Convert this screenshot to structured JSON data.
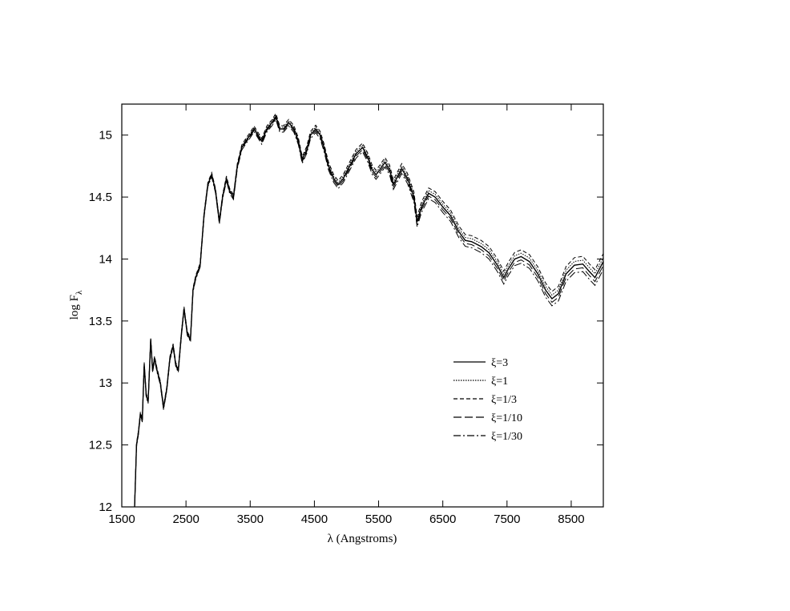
{
  "chart_data": {
    "type": "line",
    "xlabel": "λ (Angstroms)",
    "ylabel_main": "log F",
    "ylabel_sub": "λ",
    "xlim": [
      1500,
      9000
    ],
    "ylim": [
      12,
      15.25
    ],
    "xticks": [
      1500,
      2500,
      3500,
      4500,
      5500,
      6500,
      7500,
      8500
    ],
    "xtick_labels": [
      "1500",
      "2500",
      "3500",
      "4500",
      "5500",
      "6500",
      "7500",
      "8500"
    ],
    "yticks": [
      12,
      12.5,
      13,
      13.5,
      14,
      14.5,
      15
    ],
    "ytick_labels": [
      "12",
      "12.5",
      "13",
      "13.5",
      "14",
      "14.5",
      "15"
    ],
    "grid": false,
    "legend_position": "lower-right",
    "series": [
      {
        "name": "ξ=3",
        "dash": "solid",
        "offset": 0.0
      },
      {
        "name": "ξ=1",
        "dash": "dotted",
        "offset": 0.02
      },
      {
        "name": "ξ=1/3",
        "dash": "dashed",
        "offset": 0.04
      },
      {
        "name": "ξ=1/10",
        "dash": "longdash",
        "offset": -0.02
      },
      {
        "name": "ξ=1/30",
        "dash": "dashdot",
        "offset": -0.04
      }
    ],
    "base_curve": [
      [
        1700,
        12.0
      ],
      [
        1730,
        12.5
      ],
      [
        1760,
        12.6
      ],
      [
        1790,
        12.75
      ],
      [
        1820,
        12.7
      ],
      [
        1850,
        13.15
      ],
      [
        1880,
        12.9
      ],
      [
        1910,
        12.85
      ],
      [
        1950,
        13.35
      ],
      [
        1980,
        13.1
      ],
      [
        2010,
        13.2
      ],
      [
        2050,
        13.1
      ],
      [
        2100,
        13.0
      ],
      [
        2150,
        12.8
      ],
      [
        2200,
        12.95
      ],
      [
        2250,
        13.2
      ],
      [
        2300,
        13.3
      ],
      [
        2340,
        13.15
      ],
      [
        2380,
        13.1
      ],
      [
        2430,
        13.4
      ],
      [
        2470,
        13.6
      ],
      [
        2520,
        13.4
      ],
      [
        2570,
        13.35
      ],
      [
        2610,
        13.75
      ],
      [
        2650,
        13.85
      ],
      [
        2720,
        13.95
      ],
      [
        2780,
        14.35
      ],
      [
        2840,
        14.6
      ],
      [
        2900,
        14.68
      ],
      [
        2960,
        14.55
      ],
      [
        3020,
        14.3
      ],
      [
        3070,
        14.5
      ],
      [
        3130,
        14.65
      ],
      [
        3180,
        14.55
      ],
      [
        3240,
        14.5
      ],
      [
        3300,
        14.75
      ],
      [
        3370,
        14.9
      ],
      [
        3430,
        14.95
      ],
      [
        3500,
        15.0
      ],
      [
        3560,
        15.05
      ],
      [
        3620,
        15.0
      ],
      [
        3680,
        14.95
      ],
      [
        3760,
        15.05
      ],
      [
        3840,
        15.1
      ],
      [
        3900,
        15.15
      ],
      [
        3960,
        15.05
      ],
      [
        4020,
        15.05
      ],
      [
        4100,
        15.1
      ],
      [
        4180,
        15.05
      ],
      [
        4250,
        14.95
      ],
      [
        4310,
        14.8
      ],
      [
        4380,
        14.88
      ],
      [
        4440,
        15.0
      ],
      [
        4520,
        15.05
      ],
      [
        4590,
        15.0
      ],
      [
        4650,
        14.9
      ],
      [
        4720,
        14.75
      ],
      [
        4800,
        14.65
      ],
      [
        4870,
        14.6
      ],
      [
        4950,
        14.65
      ],
      [
        5050,
        14.75
      ],
      [
        5150,
        14.85
      ],
      [
        5250,
        14.9
      ],
      [
        5330,
        14.82
      ],
      [
        5400,
        14.72
      ],
      [
        5460,
        14.68
      ],
      [
        5520,
        14.72
      ],
      [
        5600,
        14.78
      ],
      [
        5670,
        14.72
      ],
      [
        5730,
        14.6
      ],
      [
        5780,
        14.65
      ],
      [
        5860,
        14.73
      ],
      [
        5950,
        14.65
      ],
      [
        6050,
        14.5
      ],
      [
        6100,
        14.3
      ],
      [
        6170,
        14.42
      ],
      [
        6280,
        14.53
      ],
      [
        6380,
        14.5
      ],
      [
        6500,
        14.42
      ],
      [
        6620,
        14.35
      ],
      [
        6750,
        14.22
      ],
      [
        6850,
        14.15
      ],
      [
        6950,
        14.14
      ],
      [
        7100,
        14.1
      ],
      [
        7220,
        14.05
      ],
      [
        7350,
        13.95
      ],
      [
        7450,
        13.85
      ],
      [
        7520,
        13.92
      ],
      [
        7620,
        14.0
      ],
      [
        7720,
        14.02
      ],
      [
        7850,
        13.98
      ],
      [
        7980,
        13.88
      ],
      [
        8100,
        13.75
      ],
      [
        8200,
        13.68
      ],
      [
        8300,
        13.72
      ],
      [
        8420,
        13.88
      ],
      [
        8550,
        13.95
      ],
      [
        8680,
        13.96
      ],
      [
        8780,
        13.9
      ],
      [
        8870,
        13.85
      ],
      [
        8950,
        13.93
      ],
      [
        9000,
        13.98
      ]
    ]
  }
}
